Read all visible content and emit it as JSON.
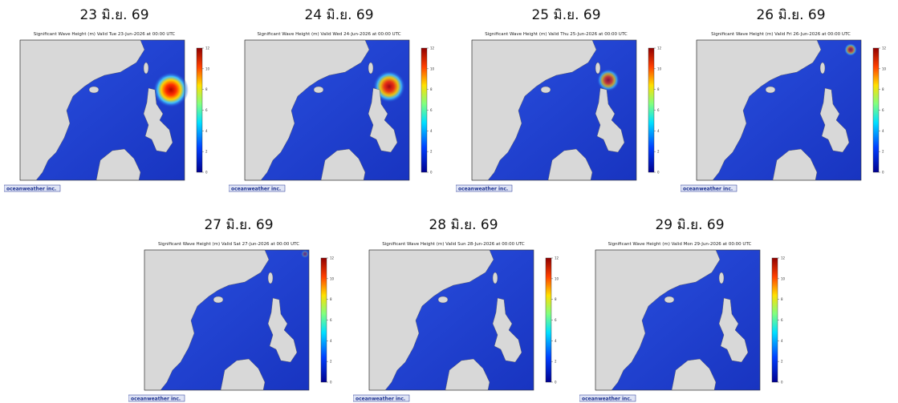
{
  "panels": [
    {
      "date": "23 มิ.ย. 69",
      "map_title": "Significant Wave Height (m) Valid Tue 23-Jun-2026 at 00:00 UTC"
    },
    {
      "date": "24 มิ.ย. 69",
      "map_title": "Significant Wave Height (m) Valid Wed 24-Jun-2026 at 00:00 UTC"
    },
    {
      "date": "25 มิ.ย. 69",
      "map_title": "Significant Wave Height (m) Valid Thu 25-Jun-2026 at 00:00 UTC"
    },
    {
      "date": "26 มิ.ย. 69",
      "map_title": "Significant Wave Height (m) Valid Fri 26-Jun-2026 at 00:00 UTC"
    },
    {
      "date": "27 มิ.ย. 69",
      "map_title": "Significant Wave Height (m) Valid Sat 27-Jun-2026 at 00:00 UTC"
    },
    {
      "date": "28 มิ.ย. 69",
      "map_title": "Significant Wave Height (m) Valid Sun 28-Jun-2026 at 00:00 UTC"
    },
    {
      "date": "29 มิ.ย. 69",
      "map_title": "Significant Wave Height (m) Valid Mon 29-Jun-2026 at 00:00 UTC"
    }
  ],
  "colorbar_ticks": [
    0,
    2,
    4,
    6,
    8,
    10,
    12
  ],
  "logo": "oceanweather inc."
}
